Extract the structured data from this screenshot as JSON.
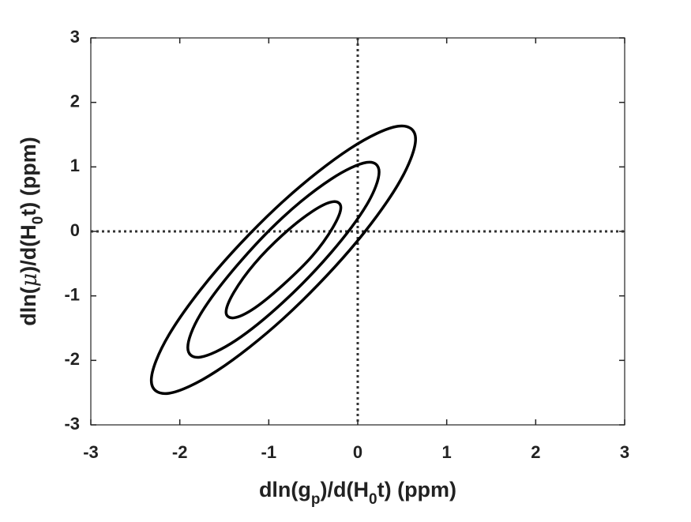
{
  "chart_data": {
    "type": "contour",
    "xlabel": [
      {
        "text": "dln(g"
      },
      {
        "text": "p",
        "sub": true
      },
      {
        "text": ")/d(H"
      },
      {
        "text": "0",
        "sub": true
      },
      {
        "text": "t) (ppm)"
      }
    ],
    "ylabel": [
      {
        "text": "dln("
      },
      {
        "text": "μ",
        "italic": true
      },
      {
        "text": ")/d(H"
      },
      {
        "text": "0",
        "sub": true
      },
      {
        "text": "t) (ppm)"
      }
    ],
    "xlim": [
      -3,
      3
    ],
    "ylim": [
      -3,
      3
    ],
    "xticks": [
      -3,
      -2,
      -1,
      0,
      1,
      2,
      3
    ],
    "yticks": [
      -3,
      -2,
      -1,
      0,
      1,
      2,
      3
    ],
    "reference_lines": {
      "x": 0,
      "y": 0
    },
    "color": "#000000",
    "series": [
      {
        "x": [
          -0.19,
          -0.28,
          -0.51,
          -0.84,
          -1.16,
          -1.39,
          -1.48,
          -1.39,
          -1.16,
          -0.84,
          -0.51,
          -0.28
        ],
        "y": [
          0.37,
          0.46,
          0.31,
          -0.05,
          -0.5,
          -0.94,
          -1.25,
          -1.34,
          -1.19,
          -0.83,
          -0.38,
          0.06
        ]
      },
      {
        "x": [
          0.24,
          0.1,
          -0.3,
          -0.84,
          -1.37,
          -1.77,
          -1.91,
          -1.77,
          -1.37,
          -0.84,
          -0.3,
          0.1
        ],
        "y": [
          0.92,
          1.07,
          0.81,
          0.22,
          -0.55,
          -1.29,
          -1.8,
          -1.95,
          -1.69,
          -1.1,
          -0.33,
          0.41
        ]
      },
      {
        "x": [
          0.65,
          0.45,
          -0.09,
          -0.835,
          -1.58,
          -2.12,
          -2.32,
          -2.12,
          -1.58,
          -0.835,
          -0.09,
          0.45
        ],
        "y": [
          1.43,
          1.63,
          1.28,
          0.47,
          -0.59,
          -1.6,
          -2.31,
          -2.51,
          -2.16,
          -1.35,
          -0.29,
          0.72
        ]
      }
    ]
  }
}
